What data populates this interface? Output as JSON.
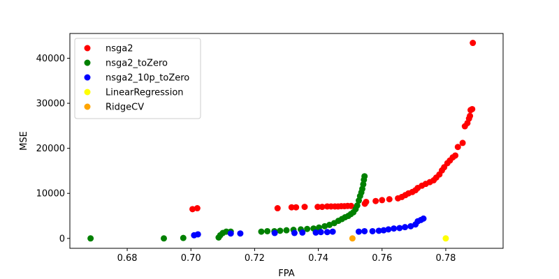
{
  "chart_data": {
    "type": "scatter",
    "title": "",
    "xlabel": "FPA",
    "ylabel": "MSE",
    "xlim": [
      0.662,
      0.798
    ],
    "ylim": [
      -2200,
      45500
    ],
    "x_ticks": [
      0.68,
      0.7,
      0.72,
      0.74,
      0.76,
      0.78
    ],
    "x_tick_labels": [
      "0.68",
      "0.70",
      "0.72",
      "0.74",
      "0.76",
      "0.78"
    ],
    "y_ticks": [
      0,
      10000,
      20000,
      30000,
      40000
    ],
    "y_tick_labels": [
      "0",
      "10000",
      "20000",
      "30000",
      "40000"
    ],
    "grid": false,
    "legend_position": "top-left",
    "series": [
      {
        "name": "nsga2",
        "color": "#ff0000",
        "points": [
          [
            0.7005,
            6500
          ],
          [
            0.702,
            6700
          ],
          [
            0.7272,
            6700
          ],
          [
            0.7316,
            6900
          ],
          [
            0.733,
            6900
          ],
          [
            0.7357,
            7000
          ],
          [
            0.7398,
            7000
          ],
          [
            0.7412,
            7000
          ],
          [
            0.7428,
            7100
          ],
          [
            0.744,
            7100
          ],
          [
            0.7452,
            7100
          ],
          [
            0.7462,
            7100
          ],
          [
            0.7472,
            7150
          ],
          [
            0.7482,
            7150
          ],
          [
            0.7492,
            7200
          ],
          [
            0.7503,
            7200
          ],
          [
            0.7546,
            7700
          ],
          [
            0.755,
            8100
          ],
          [
            0.758,
            8300
          ],
          [
            0.76,
            8500
          ],
          [
            0.7623,
            8700
          ],
          [
            0.765,
            8900
          ],
          [
            0.7662,
            9200
          ],
          [
            0.7673,
            9600
          ],
          [
            0.7683,
            10000
          ],
          [
            0.7695,
            10300
          ],
          [
            0.7705,
            10700
          ],
          [
            0.7712,
            11200
          ],
          [
            0.7725,
            11700
          ],
          [
            0.7737,
            12100
          ],
          [
            0.775,
            12500
          ],
          [
            0.7762,
            12900
          ],
          [
            0.777,
            13500
          ],
          [
            0.778,
            14200
          ],
          [
            0.7788,
            15100
          ],
          [
            0.7795,
            15800
          ],
          [
            0.7805,
            16700
          ],
          [
            0.7813,
            17300
          ],
          [
            0.7822,
            18000
          ],
          [
            0.783,
            18400
          ],
          [
            0.7838,
            20300
          ],
          [
            0.7853,
            21200
          ],
          [
            0.786,
            24900
          ],
          [
            0.7868,
            25600
          ],
          [
            0.7873,
            26600
          ],
          [
            0.7876,
            27200
          ],
          [
            0.7878,
            28500
          ],
          [
            0.7883,
            28700
          ],
          [
            0.7885,
            43400
          ]
        ]
      },
      {
        "name": "nsga2_toZero",
        "color": "#008000",
        "points": [
          [
            0.6685,
            0
          ],
          [
            0.6915,
            0
          ],
          [
            0.6976,
            100
          ],
          [
            0.7087,
            200
          ],
          [
            0.7092,
            700
          ],
          [
            0.71,
            1200
          ],
          [
            0.7111,
            1500
          ],
          [
            0.7125,
            1500
          ],
          [
            0.7221,
            1500
          ],
          [
            0.724,
            1600
          ],
          [
            0.7262,
            1600
          ],
          [
            0.728,
            1700
          ],
          [
            0.73,
            1800
          ],
          [
            0.7322,
            1900
          ],
          [
            0.7345,
            2000
          ],
          [
            0.7365,
            2100
          ],
          [
            0.7385,
            2200
          ],
          [
            0.7402,
            2400
          ],
          [
            0.742,
            2700
          ],
          [
            0.7435,
            3000
          ],
          [
            0.745,
            3400
          ],
          [
            0.7463,
            3900
          ],
          [
            0.7474,
            4300
          ],
          [
            0.7484,
            4700
          ],
          [
            0.7494,
            5000
          ],
          [
            0.7502,
            5400
          ],
          [
            0.751,
            5800
          ],
          [
            0.7517,
            6500
          ],
          [
            0.7522,
            7300
          ],
          [
            0.7527,
            8400
          ],
          [
            0.7531,
            9400
          ],
          [
            0.7535,
            10200
          ],
          [
            0.7538,
            11000
          ],
          [
            0.7541,
            12000
          ],
          [
            0.7543,
            13000
          ],
          [
            0.7545,
            13800
          ]
        ]
      },
      {
        "name": "nsga2_10p_toZero",
        "color": "#0000ff",
        "points": [
          [
            0.701,
            700
          ],
          [
            0.7022,
            900
          ],
          [
            0.7125,
            1100
          ],
          [
            0.7155,
            1100
          ],
          [
            0.7263,
            1200
          ],
          [
            0.7325,
            1200
          ],
          [
            0.735,
            1300
          ],
          [
            0.7392,
            1300
          ],
          [
            0.7408,
            1400
          ],
          [
            0.7428,
            1400
          ],
          [
            0.7445,
            1500
          ],
          [
            0.7527,
            1500
          ],
          [
            0.7545,
            1600
          ],
          [
            0.757,
            1600
          ],
          [
            0.759,
            1700
          ],
          [
            0.7605,
            1800
          ],
          [
            0.762,
            2000
          ],
          [
            0.7637,
            2200
          ],
          [
            0.7655,
            2300
          ],
          [
            0.7672,
            2500
          ],
          [
            0.769,
            2700
          ],
          [
            0.7705,
            3100
          ],
          [
            0.7712,
            3800
          ],
          [
            0.7722,
            4100
          ],
          [
            0.773,
            4400
          ]
        ]
      },
      {
        "name": "LinearRegression",
        "color": "#ffff00",
        "points": [
          [
            0.78,
            0
          ]
        ]
      },
      {
        "name": "RidgeCV",
        "color": "#ffa500",
        "points": [
          [
            0.7507,
            0
          ]
        ]
      }
    ]
  }
}
